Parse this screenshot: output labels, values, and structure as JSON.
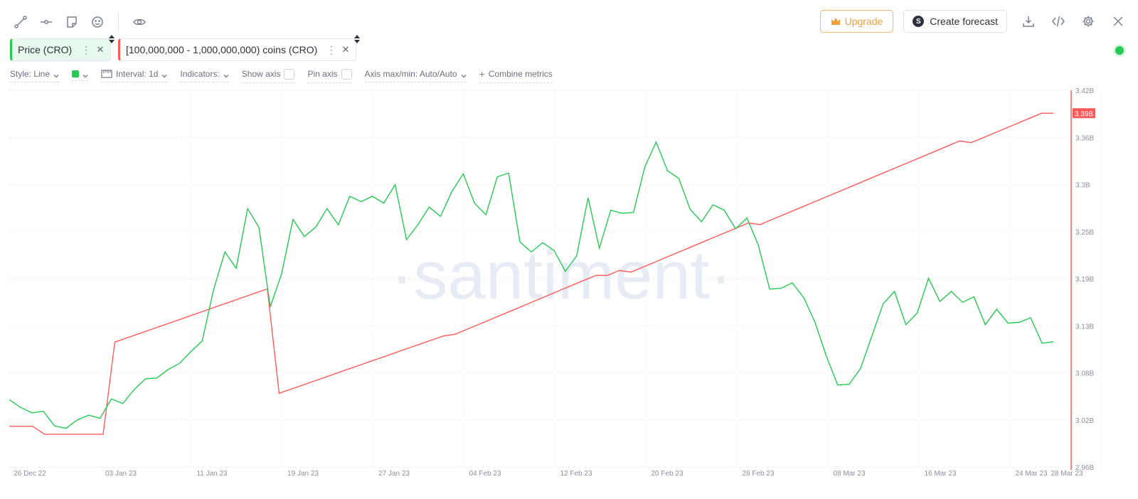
{
  "toolbar": {
    "upgrade_label": "Upgrade",
    "forecast_label": "Create forecast",
    "forecast_icon_letter": "S"
  },
  "metrics": [
    {
      "label": "Price (CRO)",
      "color": "#26c953"
    },
    {
      "label": "[100,000,000 - 1,000,000,000) coins (CRO)",
      "color": "#ff5a5a"
    }
  ],
  "settings": {
    "style_label": "Style: Line",
    "interval_label": "Interval: 1d",
    "indicators_label": "Indicators:",
    "show_axis_label": "Show axis",
    "pin_axis_label": "Pin axis",
    "axis_label": "Axis max/min: Auto/Auto",
    "combine_label": "Combine metrics"
  },
  "watermark": "santiment",
  "chart_data": {
    "type": "line",
    "x_ticks": [
      "26 Dec 22",
      "03 Jan 23",
      "11 Jan 23",
      "19 Jan 23",
      "27 Jan 23",
      "04 Feb 23",
      "12 Feb 23",
      "20 Feb 23",
      "28 Feb 23",
      "08 Mar 23",
      "16 Mar 23",
      "24 Mar 23",
      "28 Mar 23"
    ],
    "y_ticks": [
      "3.42B",
      "3.36B",
      "3.3B",
      "3.25B",
      "3.19B",
      "3.13B",
      "3.08B",
      "3.02B",
      "2.96B"
    ],
    "y_range": [
      2.96,
      3.42
    ],
    "last_value_label": "3.39B",
    "grid": true,
    "series": [
      {
        "name": "Price (CRO)",
        "color": "#26c953",
        "values": [
          0.0675,
          0.0665,
          0.0658,
          0.066,
          0.0641,
          0.0638,
          0.0649,
          0.0655,
          0.0651,
          0.0676,
          0.067,
          0.0688,
          0.0702,
          0.0703,
          0.0714,
          0.0722,
          0.0737,
          0.0751,
          0.0817,
          0.0866,
          0.0845,
          0.0922,
          0.0898,
          0.0795,
          0.0838,
          0.0908,
          0.0886,
          0.0898,
          0.0922,
          0.0901,
          0.0938,
          0.0931,
          0.0938,
          0.0929,
          0.0953,
          0.0882,
          0.0901,
          0.0924,
          0.0912,
          0.0944,
          0.0967,
          0.0929,
          0.0914,
          0.0963,
          0.0968,
          0.0879,
          0.0866,
          0.0878,
          0.0868,
          0.0841,
          0.0861,
          0.0936,
          0.0871,
          0.092,
          0.0916,
          0.0917,
          0.0976,
          0.1008,
          0.0971,
          0.0961,
          0.0921,
          0.0905,
          0.0927,
          0.092,
          0.0896,
          0.091,
          0.0875,
          0.0818,
          0.0819,
          0.0826,
          0.0807,
          0.0775,
          0.0731,
          0.0694,
          0.0695,
          0.0715,
          0.0757,
          0.0799,
          0.0815,
          0.0772,
          0.0787,
          0.0832,
          0.0802,
          0.0815,
          0.0801,
          0.0808,
          0.0772,
          0.0792,
          0.0774,
          0.0775,
          0.0781,
          0.0748,
          0.075
        ]
      },
      {
        "name": "[100,000,000 - 1,000,000,000) coins (CRO)",
        "color": "#ff5a5a",
        "values": [
          3.0097,
          3.0097,
          3.0097,
          3.0,
          3.0,
          3.0,
          3.0,
          3.0,
          3.0,
          3.1125,
          3.1175,
          3.1225,
          3.1275,
          3.1325,
          3.1375,
          3.1425,
          3.1475,
          3.1525,
          3.1575,
          3.1625,
          3.1675,
          3.1725,
          3.1775,
          3.05,
          3.055,
          3.06,
          3.065,
          3.07,
          3.075,
          3.08,
          3.085,
          3.09,
          3.095,
          3.1,
          3.105,
          3.11,
          3.115,
          3.12,
          3.122,
          3.128,
          3.134,
          3.14,
          3.146,
          3.152,
          3.158,
          3.164,
          3.17,
          3.176,
          3.182,
          3.188,
          3.194,
          3.194,
          3.2,
          3.198,
          3.204,
          3.21,
          3.216,
          3.222,
          3.228,
          3.234,
          3.24,
          3.246,
          3.252,
          3.258,
          3.256,
          3.262,
          3.268,
          3.274,
          3.28,
          3.286,
          3.292,
          3.298,
          3.304,
          3.31,
          3.316,
          3.322,
          3.328,
          3.334,
          3.34,
          3.346,
          3.352,
          3.358,
          3.356,
          3.362,
          3.368,
          3.374,
          3.38,
          3.386,
          3.392,
          3.392
        ]
      }
    ]
  }
}
